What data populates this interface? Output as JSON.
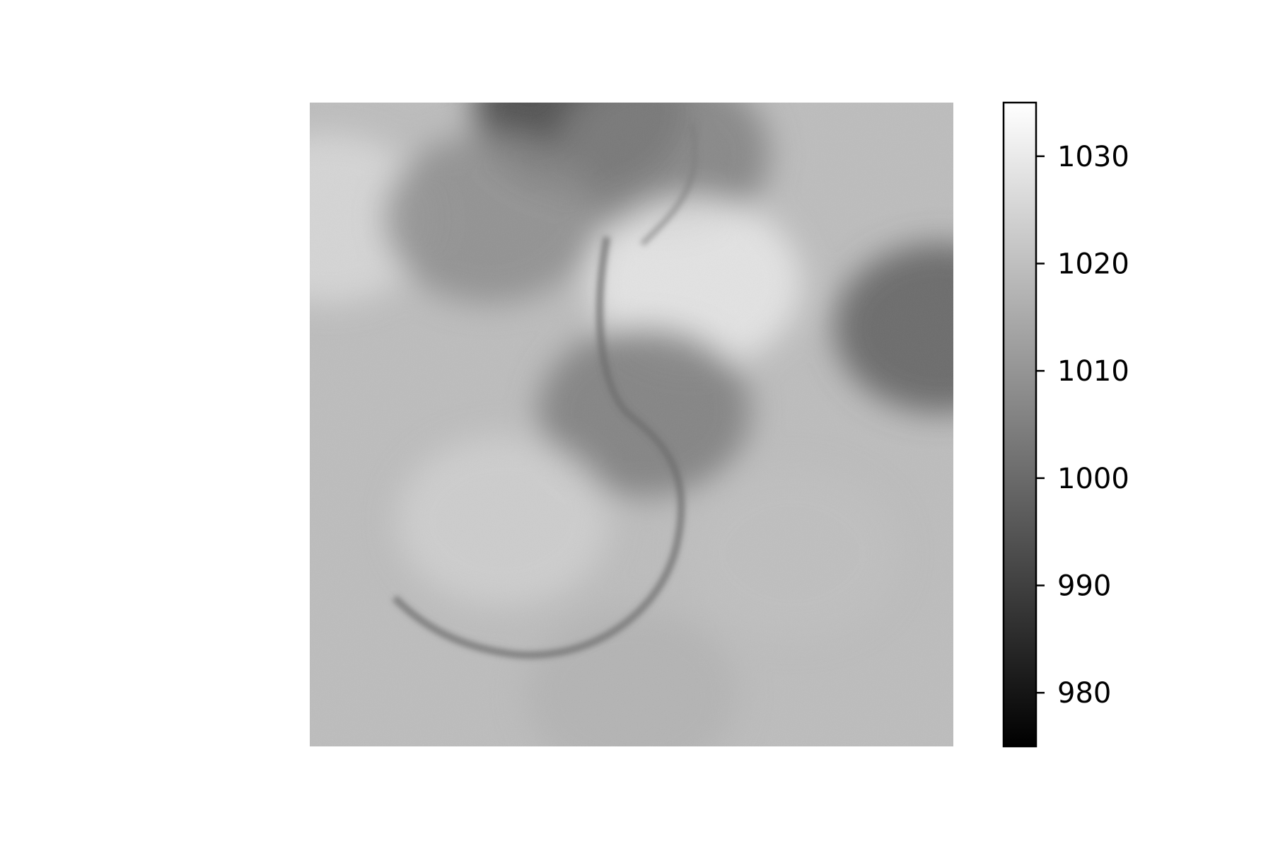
{
  "chart_data": {
    "type": "heatmap",
    "title": "",
    "xlabel": "",
    "ylabel": "",
    "axes_visible": false,
    "colormap": "gray",
    "colorbar": {
      "vmin": 975,
      "vmax": 1035,
      "ticks": [
        980,
        990,
        1000,
        1010,
        1020,
        1030
      ],
      "tick_labels": [
        "980",
        "990",
        "1000",
        "1010",
        "1020",
        "1030"
      ],
      "placement": "right"
    },
    "field_description_points": [
      {
        "x": 0.42,
        "y": 0.01,
        "value": 990
      },
      {
        "x": 0.55,
        "y": 0.08,
        "value": 1005
      },
      {
        "x": 0.03,
        "y": 0.18,
        "value": 1026
      },
      {
        "x": 0.28,
        "y": 0.18,
        "value": 1008
      },
      {
        "x": 0.6,
        "y": 0.28,
        "value": 1030
      },
      {
        "x": 0.98,
        "y": 0.35,
        "value": 997
      },
      {
        "x": 0.52,
        "y": 0.48,
        "value": 1004
      },
      {
        "x": 0.3,
        "y": 0.65,
        "value": 1024
      },
      {
        "x": 0.75,
        "y": 0.7,
        "value": 1020
      },
      {
        "x": 0.5,
        "y": 0.92,
        "value": 1017
      }
    ]
  }
}
